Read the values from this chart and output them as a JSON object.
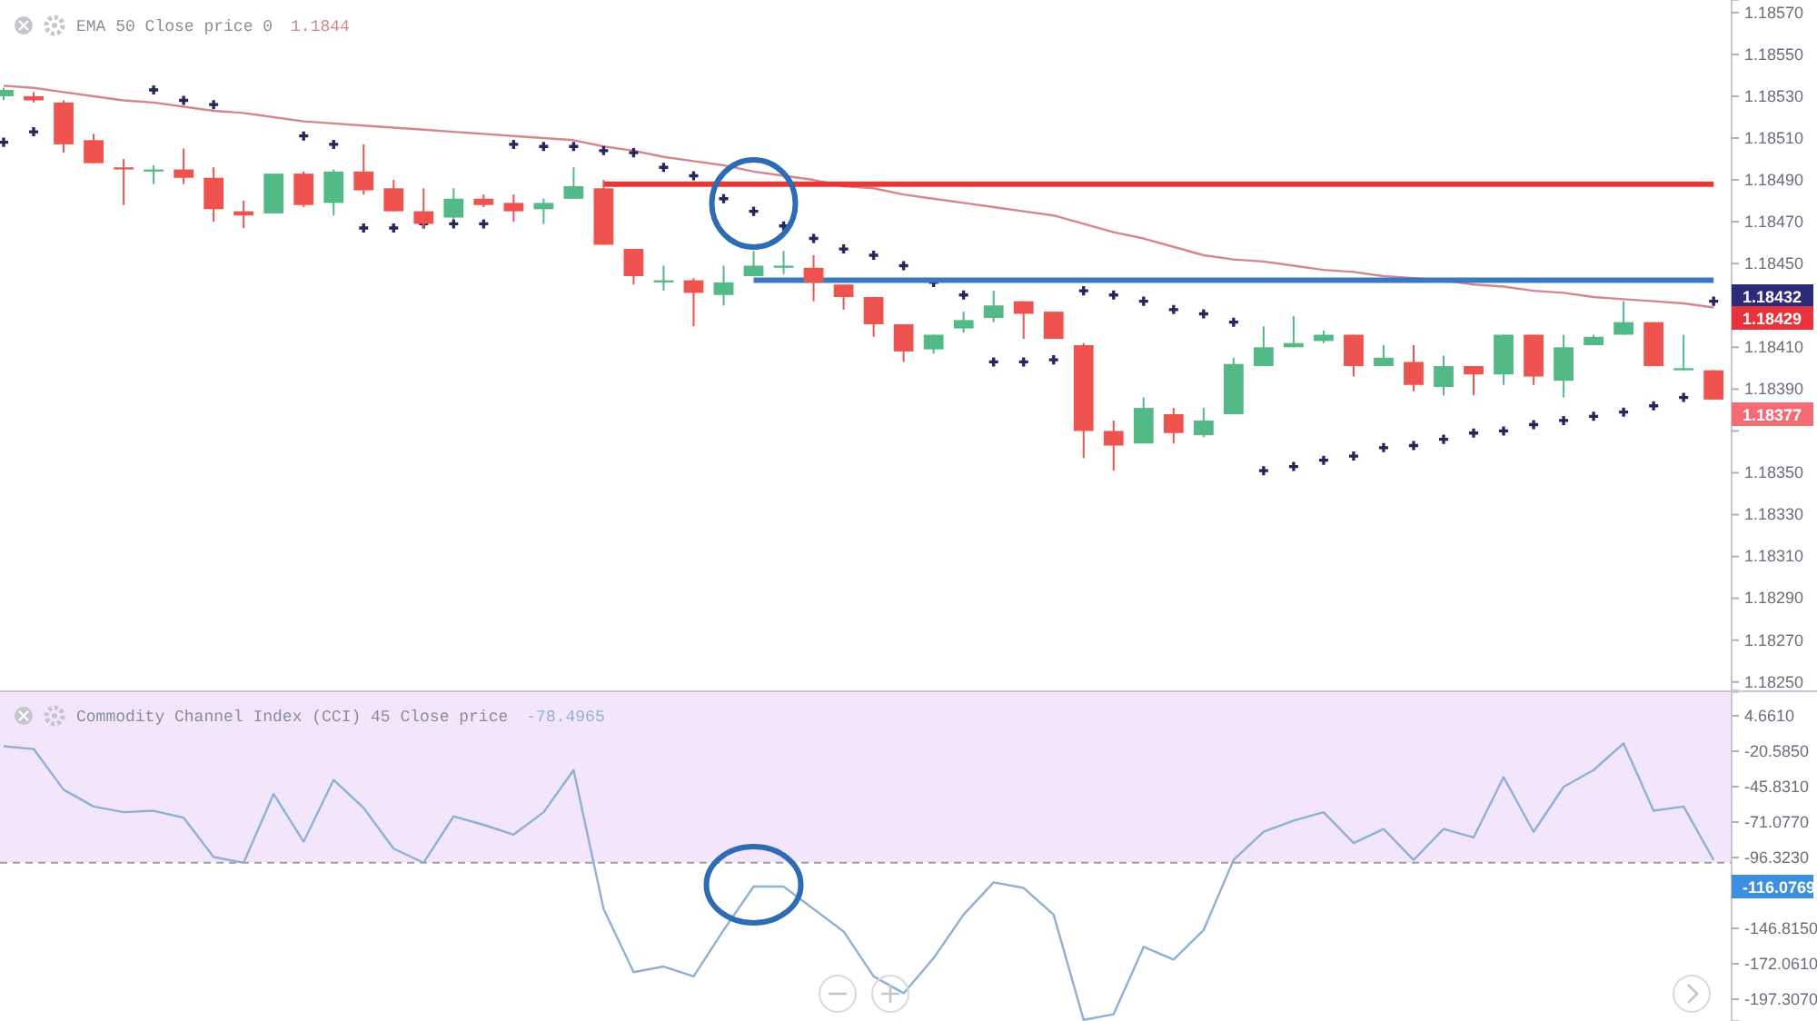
{
  "chart_data": [
    {
      "type": "candlestick",
      "categories": [
        null,
        null,
        null,
        null,
        null,
        null,
        null,
        null,
        null,
        null,
        null,
        null,
        null,
        null,
        null,
        null,
        null,
        null,
        null,
        null,
        null,
        null,
        null,
        null,
        null,
        null,
        null,
        null,
        null,
        null,
        null,
        null,
        null,
        null,
        null,
        null,
        null,
        null,
        null,
        null,
        null,
        null,
        null,
        null,
        null,
        null,
        null,
        null,
        null,
        null,
        null,
        null,
        null,
        null,
        null,
        null,
        null,
        null
      ],
      "ohlc": [
        [
          1.1853,
          1.18534,
          1.18528,
          1.18533
        ],
        [
          1.1853,
          1.18532,
          1.18527,
          1.18528
        ],
        [
          1.18527,
          1.18528,
          1.18503,
          1.18507
        ],
        [
          1.18509,
          1.18512,
          1.18498,
          1.18498
        ],
        [
          1.18496,
          1.185,
          1.18478,
          1.18495
        ],
        [
          1.18494,
          1.18497,
          1.18488,
          1.18495
        ],
        [
          1.18495,
          1.18505,
          1.18488,
          1.18491
        ],
        [
          1.18491,
          1.18496,
          1.1847,
          1.18476
        ],
        [
          1.18475,
          1.1848,
          1.18467,
          1.18473
        ],
        [
          1.18474,
          1.18493,
          1.18474,
          1.18493
        ],
        [
          1.18493,
          1.18494,
          1.18477,
          1.18478
        ],
        [
          1.18479,
          1.18495,
          1.18473,
          1.18494
        ],
        [
          1.18494,
          1.18507,
          1.18483,
          1.18485
        ],
        [
          1.18486,
          1.1849,
          1.18475,
          1.18475
        ],
        [
          1.18475,
          1.18486,
          1.18467,
          1.18469
        ],
        [
          1.18472,
          1.18486,
          1.18471,
          1.18481
        ],
        [
          1.18481,
          1.18483,
          1.18477,
          1.18478
        ],
        [
          1.18479,
          1.18483,
          1.1847,
          1.18475
        ],
        [
          1.18476,
          1.18481,
          1.18469,
          1.18479
        ],
        [
          1.18481,
          1.18496,
          1.18481,
          1.18487
        ],
        [
          1.18486,
          1.1849,
          1.18459,
          1.18459
        ],
        [
          1.18457,
          1.18457,
          1.1844,
          1.18444
        ],
        [
          1.18441,
          1.18449,
          1.18437,
          1.18442
        ],
        [
          1.18442,
          1.18443,
          1.1842,
          1.18436
        ],
        [
          1.18435,
          1.18449,
          1.1843,
          1.18441
        ],
        [
          1.18444,
          1.18456,
          1.18444,
          1.18449
        ],
        [
          1.18448,
          1.18456,
          1.18445,
          1.18449
        ],
        [
          1.18448,
          1.18454,
          1.18432,
          1.18441
        ],
        [
          1.1844,
          1.1844,
          1.18428,
          1.18434
        ],
        [
          1.18434,
          1.18434,
          1.18415,
          1.18421
        ],
        [
          1.18421,
          1.18421,
          1.18403,
          1.18408
        ],
        [
          1.18409,
          1.18416,
          1.18407,
          1.18416
        ],
        [
          1.18419,
          1.18427,
          1.18417,
          1.18423
        ],
        [
          1.18424,
          1.18437,
          1.18422,
          1.1843
        ],
        [
          1.18432,
          1.18432,
          1.18414,
          1.18426
        ],
        [
          1.18427,
          1.18427,
          1.18414,
          1.18414
        ],
        [
          1.18411,
          1.18412,
          1.18357,
          1.1837
        ],
        [
          1.1837,
          1.18375,
          1.18351,
          1.18363
        ],
        [
          1.18364,
          1.18386,
          1.18364,
          1.18381
        ],
        [
          1.18378,
          1.18381,
          1.18364,
          1.18369
        ],
        [
          1.18368,
          1.18381,
          1.18367,
          1.18375
        ],
        [
          1.18378,
          1.18405,
          1.18378,
          1.18402
        ],
        [
          1.18401,
          1.1842,
          1.18401,
          1.1841
        ],
        [
          1.1841,
          1.18425,
          1.1841,
          1.18412
        ],
        [
          1.18413,
          1.18418,
          1.18412,
          1.18416
        ],
        [
          1.18416,
          1.18416,
          1.18396,
          1.18401
        ],
        [
          1.18401,
          1.18411,
          1.18401,
          1.18405
        ],
        [
          1.18403,
          1.18411,
          1.18389,
          1.18392
        ],
        [
          1.18391,
          1.18406,
          1.18387,
          1.18401
        ],
        [
          1.18401,
          1.18401,
          1.18387,
          1.18397
        ],
        [
          1.18397,
          1.18416,
          1.18392,
          1.18416
        ],
        [
          1.18416,
          1.18416,
          1.18392,
          1.18396
        ],
        [
          1.18394,
          1.18416,
          1.18386,
          1.1841
        ],
        [
          1.18411,
          1.18416,
          1.18411,
          1.18415
        ],
        [
          1.18416,
          1.18432,
          1.18416,
          1.18422
        ],
        [
          1.18422,
          1.18422,
          1.18401,
          1.18401
        ],
        [
          1.18399,
          1.18416,
          1.18399,
          1.184
        ],
        [
          1.18399,
          1.18399,
          1.18385,
          1.18385
        ]
      ],
      "colors": [
        "#53b987",
        "#ef5350",
        "#ef5350",
        "#ef5350",
        "#ef5350",
        "#53b987",
        "#ef5350",
        "#ef5350",
        "#ef5350",
        "#53b987",
        "#ef5350",
        "#53b987",
        "#ef5350",
        "#ef5350",
        "#ef5350",
        "#53b987",
        "#ef5350",
        "#ef5350",
        "#53b987",
        "#53b987",
        "#ef5350",
        "#ef5350",
        "#53b987",
        "#ef5350",
        "#53b987",
        "#53b987",
        "#53b987",
        "#ef5350",
        "#ef5350",
        "#ef5350",
        "#ef5350",
        "#53b987",
        "#53b987",
        "#53b987",
        "#ef5350",
        "#ef5350",
        "#ef5350",
        "#ef5350",
        "#53b987",
        "#ef5350",
        "#53b987",
        "#53b987",
        "#53b987",
        "#53b987",
        "#53b987",
        "#ef5350",
        "#53b987",
        "#ef5350",
        "#53b987",
        "#ef5350",
        "#53b987",
        "#ef5350",
        "#53b987",
        "#53b987",
        "#53b987",
        "#ef5350",
        "#53b987",
        "#ef5350"
      ],
      "series": [
        {
          "type": "line",
          "name": "EMA 50 Close price 0",
          "color": "#d4868f",
          "values": [
            1.18535,
            1.18534,
            1.18532,
            1.1853,
            1.18528,
            1.18527,
            1.18525,
            1.18523,
            1.18522,
            1.1852,
            1.18518,
            1.18517,
            1.18516,
            1.18515,
            1.18514,
            1.18513,
            1.18512,
            1.18511,
            1.1851,
            1.18509,
            1.18506,
            1.18504,
            1.18501,
            1.18499,
            1.18497,
            1.18494,
            1.18492,
            1.1849,
            1.18487,
            1.18486,
            1.18483,
            1.18481,
            1.18479,
            1.18477,
            1.18475,
            1.18473,
            1.18469,
            1.18465,
            1.18462,
            1.18458,
            1.18454,
            1.18452,
            1.18451,
            1.18449,
            1.18447,
            1.18446,
            1.18444,
            1.18443,
            1.18442,
            1.1844,
            1.18439,
            1.18437,
            1.18436,
            1.18434,
            1.18433,
            1.18432,
            1.18431,
            1.18429
          ]
        },
        {
          "type": "scatter",
          "marker": "cross",
          "color": "#28245e",
          "values": [
            1.18508,
            1.18513,
            null,
            null,
            null,
            1.18533,
            1.18528,
            1.18526,
            null,
            null,
            1.18511,
            1.18507,
            1.18467,
            1.18467,
            1.18469,
            1.18469,
            1.18469,
            1.18507,
            1.18506,
            1.18506,
            1.18504,
            1.18503,
            1.18496,
            1.18492,
            1.18481,
            1.18475,
            1.18468,
            1.18462,
            1.18457,
            1.18454,
            1.18449,
            1.18441,
            1.18435,
            1.18403,
            1.18403,
            1.18404,
            1.18437,
            1.18435,
            1.18432,
            1.18428,
            1.18426,
            1.18422,
            1.18351,
            1.18353,
            1.18356,
            1.18358,
            1.18362,
            1.18363,
            1.18366,
            1.18369,
            1.1837,
            1.18373,
            1.18375,
            1.18377,
            1.18379,
            1.18382,
            1.18386,
            1.18432
          ]
        },
        {
          "type": "line",
          "color": "#e53935",
          "values": [
            null,
            null,
            null,
            null,
            null,
            null,
            null,
            null,
            null,
            null,
            null,
            null,
            null,
            null,
            null,
            null,
            null,
            null,
            null,
            null,
            1.18488,
            1.18488,
            1.18488,
            1.18488,
            1.18488,
            1.18488,
            1.18488,
            1.18488,
            1.18488,
            1.18488,
            1.18488,
            1.18488,
            1.18488,
            1.18488,
            1.18488,
            1.18488,
            1.18488,
            1.18488,
            1.18488,
            1.18488,
            1.18488,
            1.18488,
            1.18488,
            1.18488,
            1.18488,
            1.18488,
            1.18488,
            1.18488,
            1.18488,
            1.18488,
            1.18488,
            1.18488,
            1.18488,
            1.18488,
            1.18488,
            1.18488,
            1.18488,
            1.18488
          ]
        },
        {
          "type": "line",
          "color": "#3a78c2",
          "values": [
            null,
            null,
            null,
            null,
            null,
            null,
            null,
            null,
            null,
            null,
            null,
            null,
            null,
            null,
            null,
            null,
            null,
            null,
            null,
            null,
            null,
            null,
            null,
            null,
            null,
            1.18442,
            1.18442,
            1.18442,
            1.18442,
            1.18442,
            1.18442,
            1.18442,
            1.18442,
            1.18442,
            1.18442,
            1.18442,
            1.18442,
            1.18442,
            1.18442,
            1.18442,
            1.18442,
            1.18442,
            1.18442,
            1.18442,
            1.18442,
            1.18442,
            1.18442,
            1.18442,
            1.18442,
            1.18442,
            1.18442,
            1.18442,
            1.18442,
            1.18442,
            1.18442,
            1.18442,
            1.18442,
            1.18442
          ]
        }
      ],
      "ylim": [
        1.18246,
        1.18576
      ],
      "yticks": [
        {
          "value": 1.1825,
          "label": "1.18250"
        },
        {
          "value": 1.1827,
          "label": "1.18270"
        },
        {
          "value": 1.1829,
          "label": "1.18290"
        },
        {
          "value": 1.1831,
          "label": "1.18310"
        },
        {
          "value": 1.1833,
          "label": "1.18330"
        },
        {
          "value": 1.1835,
          "label": "1.18350"
        },
        {
          "value": 1.1837,
          "label": null
        },
        {
          "value": 1.1839,
          "label": "1.18390"
        },
        {
          "value": 1.1841,
          "label": "1.18410"
        },
        {
          "value": 1.1843,
          "label": null
        },
        {
          "value": 1.1845,
          "label": "1.18450"
        },
        {
          "value": 1.1847,
          "label": "1.18470"
        },
        {
          "value": 1.1849,
          "label": "1.18490"
        },
        {
          "value": 1.1851,
          "label": "1.18510"
        },
        {
          "value": 1.1853,
          "label": "1.18530"
        },
        {
          "value": 1.1855,
          "label": "1.18550"
        },
        {
          "value": 1.1857,
          "label": "1.18570"
        }
      ],
      "tick_labels": "y",
      "legend": "top left",
      "annotations": [
        "1.1844",
        "1.18432",
        "1.18429",
        "1.18377"
      ]
    },
    {
      "type": "line",
      "categories": [
        null,
        null,
        null,
        null,
        null,
        null,
        null,
        null,
        null,
        null,
        null,
        null,
        null,
        null,
        null,
        null,
        null,
        null,
        null,
        null,
        null,
        null,
        null,
        null,
        null,
        null,
        null,
        null,
        null,
        null,
        null,
        null,
        null,
        null,
        null,
        null,
        null,
        null,
        null,
        null,
        null,
        null,
        null,
        null,
        null,
        null,
        null,
        null,
        null,
        null,
        null,
        null,
        null,
        null,
        null,
        null,
        null,
        null
      ],
      "series": [
        {
          "name": "Commodity Channel Index (CCI) 45 Close price",
          "color": "#8fb0d3",
          "values": [
            -17,
            -19,
            -48,
            -60,
            -64,
            -63,
            -68,
            -96,
            -100,
            -51,
            -85,
            -41,
            -61,
            -90,
            -100,
            -67,
            -73,
            -80,
            -64,
            -34,
            -133,
            -178,
            -174,
            -181,
            -148,
            -117,
            -117,
            -133,
            -149,
            -181,
            -193,
            -168,
            -137,
            -114,
            -118,
            -137,
            -212,
            -208,
            -160,
            -169,
            -148,
            -98,
            -78,
            -70,
            -64,
            -86,
            -76,
            -98,
            -76,
            -82,
            -39,
            -78,
            -46,
            -34,
            -15,
            -63,
            -60,
            -98
          ]
        }
      ],
      "ylim": [
        -212.8,
        21.5
      ],
      "yticks": [
        {
          "value": 4.661,
          "label": "4.6610"
        },
        {
          "value": -20.585,
          "label": "-20.5850"
        },
        {
          "value": -45.831,
          "label": "-45.8310"
        },
        {
          "value": -71.077,
          "label": "-71.0770"
        },
        {
          "value": -96.323,
          "label": "-96.3230"
        },
        {
          "value": -146.815,
          "label": "-146.8150"
        },
        {
          "value": -172.061,
          "label": "-172.0610"
        },
        {
          "value": -197.307,
          "label": "-197.3070"
        }
      ],
      "bands": [
        {
          "axis": "y",
          "from": -100,
          "to": 21.5,
          "color": "#f3e6fb"
        }
      ],
      "ref_lines": [
        {
          "axis": "y",
          "value": -100,
          "color": "#a0a0a8",
          "line_style": "dashed"
        }
      ],
      "tick_labels": "y",
      "legend": "top left",
      "annotations": [
        "-78.4965",
        "-116.0769"
      ]
    }
  ]
}
